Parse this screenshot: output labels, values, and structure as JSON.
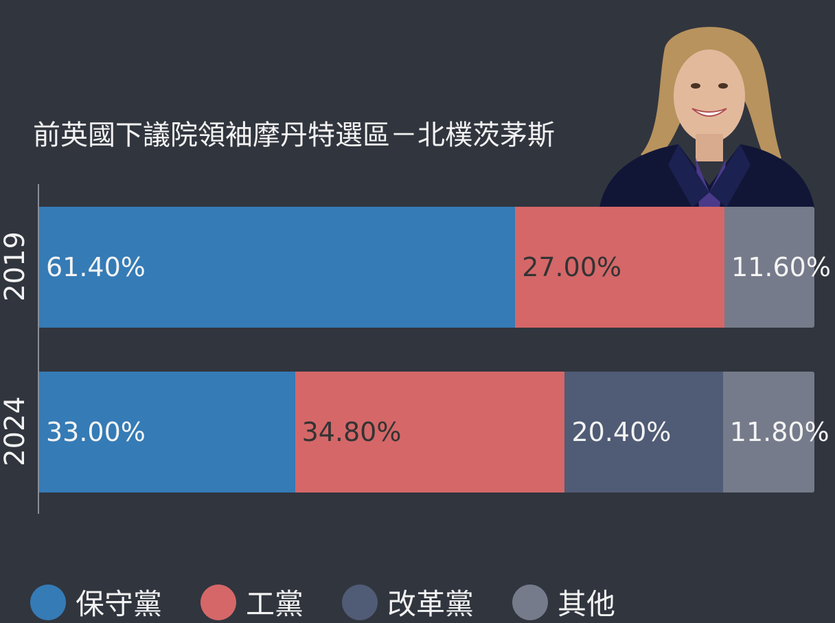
{
  "colors": {
    "background": "#31353e",
    "conservative": "#357bb6",
    "labour": "#d56768",
    "reform": "#505b75",
    "other": "#767b8b"
  },
  "chart_data": {
    "type": "bar",
    "orientation": "horizontal",
    "stacked": true,
    "title": "前英國下議院領袖摩丹特選區－北樸茨茅斯",
    "categories": [
      "2019",
      "2024"
    ],
    "series": [
      {
        "name": "保守黨",
        "color": "#357bb6",
        "values": [
          61.4,
          33.0
        ],
        "labels": [
          "61.40%",
          "33.00%"
        ]
      },
      {
        "name": "工黨",
        "color": "#d56768",
        "values": [
          27.0,
          34.8
        ],
        "labels": [
          "27.00%",
          "34.80%"
        ]
      },
      {
        "name": "改革黨",
        "color": "#505b75",
        "values": [
          0,
          20.4
        ],
        "labels": [
          "",
          "20.40%"
        ]
      },
      {
        "name": "其他",
        "color": "#767b8b",
        "values": [
          11.6,
          11.8
        ],
        "labels": [
          "11.60%",
          "11.80%"
        ]
      }
    ],
    "xlim": [
      0,
      100
    ],
    "legend_position": "bottom"
  }
}
